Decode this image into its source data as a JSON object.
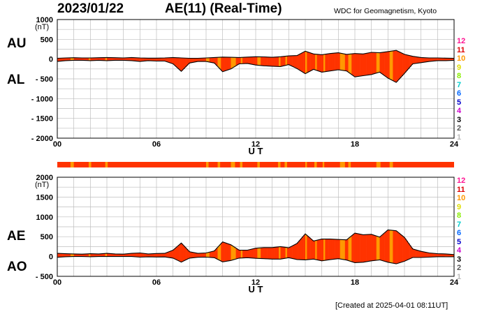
{
  "header": {
    "date": "2023/01/22",
    "title": "AE(11) (Real-Time)",
    "source": "WDC for Geomagnetism, Kyoto"
  },
  "footer": "[Created at 2025-04-01 08:11UT]",
  "levels": {
    "labels": [
      "12",
      "11",
      "10",
      "9",
      "8",
      "7",
      "6",
      "5",
      "4",
      "3",
      "2",
      "1"
    ],
    "colors": [
      "#ff1493",
      "#dd0000",
      "#ff9900",
      "#dddd00",
      "#88ee00",
      "#00cccc",
      "#0066ff",
      "#0000cc",
      "#cc00cc",
      "#000000",
      "#555555",
      "#bbbbbb"
    ]
  },
  "colors": {
    "fill": "#ff3300",
    "alt": "#ff9900",
    "outline": "#000000"
  },
  "chart_data": [
    {
      "type": "area",
      "panel": "AU/AL",
      "labels": {
        "upper": "AU",
        "lower": "AL",
        "unit": "(nT)",
        "xlabel": "U T"
      },
      "x_ticks": [
        "00",
        "06",
        "12",
        "18",
        "24"
      ],
      "y_ticks": [
        "1000",
        "500",
        "0",
        "- 500",
        "- 1000",
        "- 1500",
        "- 2000"
      ],
      "ylim": [
        -2000,
        1000
      ],
      "xlim": [
        0,
        24
      ],
      "x": [
        0,
        0.5,
        1,
        1.5,
        2,
        2.5,
        3,
        3.5,
        4,
        4.5,
        5,
        5.5,
        6,
        6.5,
        7,
        7.5,
        8,
        8.5,
        9,
        9.5,
        10,
        10.5,
        11,
        11.5,
        12,
        12.5,
        13,
        13.5,
        14,
        14.5,
        15,
        15.5,
        16,
        16.5,
        17,
        17.5,
        18,
        18.5,
        19,
        19.5,
        20,
        20.5,
        21,
        21.5,
        22,
        22.5,
        23,
        23.5,
        24
      ],
      "series": [
        {
          "name": "AU",
          "values": [
            20,
            30,
            35,
            30,
            30,
            35,
            40,
            35,
            30,
            40,
            30,
            25,
            25,
            30,
            40,
            30,
            20,
            20,
            30,
            40,
            50,
            45,
            40,
            50,
            60,
            55,
            45,
            60,
            80,
            90,
            200,
            130,
            110,
            140,
            160,
            120,
            140,
            130,
            170,
            160,
            190,
            220,
            120,
            70,
            40,
            30,
            30,
            25,
            20
          ]
        },
        {
          "name": "AL",
          "values": [
            -60,
            -40,
            -30,
            -30,
            -40,
            -30,
            -40,
            -30,
            -30,
            -40,
            -60,
            -40,
            -50,
            -50,
            -120,
            -310,
            -100,
            -60,
            -60,
            -100,
            -320,
            -250,
            -120,
            -110,
            -150,
            -170,
            -180,
            -190,
            -140,
            -240,
            -370,
            -260,
            -330,
            -300,
            -270,
            -300,
            -450,
            -420,
            -390,
            -330,
            -480,
            -590,
            -360,
            -120,
            -90,
            -60,
            -40,
            -40,
            -30
          ]
        }
      ]
    },
    {
      "type": "area",
      "panel": "AE/AO",
      "labels": {
        "upper": "AE",
        "lower": "AO",
        "unit": "(nT)",
        "xlabel": "U T"
      },
      "x_ticks": [
        "00",
        "06",
        "12",
        "18",
        "24"
      ],
      "y_ticks": [
        "2000",
        "1500",
        "1000",
        "500",
        "0",
        "- 500"
      ],
      "ylim": [
        -500,
        2000
      ],
      "xlim": [
        0,
        24
      ],
      "x": [
        0,
        0.5,
        1,
        1.5,
        2,
        2.5,
        3,
        3.5,
        4,
        4.5,
        5,
        5.5,
        6,
        6.5,
        7,
        7.5,
        8,
        8.5,
        9,
        9.5,
        10,
        10.5,
        11,
        11.5,
        12,
        12.5,
        13,
        13.5,
        14,
        14.5,
        15,
        15.5,
        16,
        16.5,
        17,
        17.5,
        18,
        18.5,
        19,
        19.5,
        20,
        20.5,
        21,
        21.5,
        22,
        22.5,
        23,
        23.5,
        24
      ],
      "series": [
        {
          "name": "AE",
          "values": [
            80,
            70,
            65,
            60,
            70,
            65,
            80,
            65,
            60,
            80,
            90,
            65,
            75,
            80,
            160,
            340,
            120,
            80,
            90,
            140,
            370,
            295,
            160,
            160,
            210,
            225,
            225,
            250,
            220,
            330,
            570,
            390,
            440,
            440,
            430,
            420,
            590,
            550,
            560,
            490,
            670,
            650,
            480,
            190,
            130,
            90,
            70,
            65,
            50
          ]
        },
        {
          "name": "AO",
          "values": [
            -20,
            -5,
            0,
            0,
            -5,
            0,
            0,
            0,
            0,
            0,
            -15,
            -8,
            -12,
            -10,
            -40,
            -140,
            -40,
            -20,
            -15,
            -30,
            -135,
            -100,
            -40,
            -30,
            -45,
            -55,
            -65,
            -65,
            -30,
            -75,
            -85,
            -65,
            -110,
            -80,
            -55,
            -90,
            -155,
            -145,
            -110,
            -85,
            -145,
            -185,
            -120,
            -25,
            -25,
            -15,
            -5,
            -7,
            -5
          ]
        }
      ]
    }
  ],
  "quality_bar": {
    "alt_segments": [
      [
        0.8,
        1.0
      ],
      [
        1.9,
        2.05
      ],
      [
        2.9,
        3.05
      ],
      [
        9.0,
        9.15
      ],
      [
        9.7,
        9.85
      ],
      [
        10.5,
        10.75
      ],
      [
        11.05,
        11.2
      ],
      [
        12.1,
        12.25
      ],
      [
        13.35,
        13.5
      ],
      [
        13.75,
        13.9
      ],
      [
        15.0,
        15.1
      ],
      [
        15.55,
        15.7
      ],
      [
        16.05,
        16.15
      ],
      [
        17.1,
        17.4
      ],
      [
        17.6,
        17.75
      ],
      [
        19.3,
        19.55
      ],
      [
        20.1,
        20.3
      ]
    ]
  }
}
